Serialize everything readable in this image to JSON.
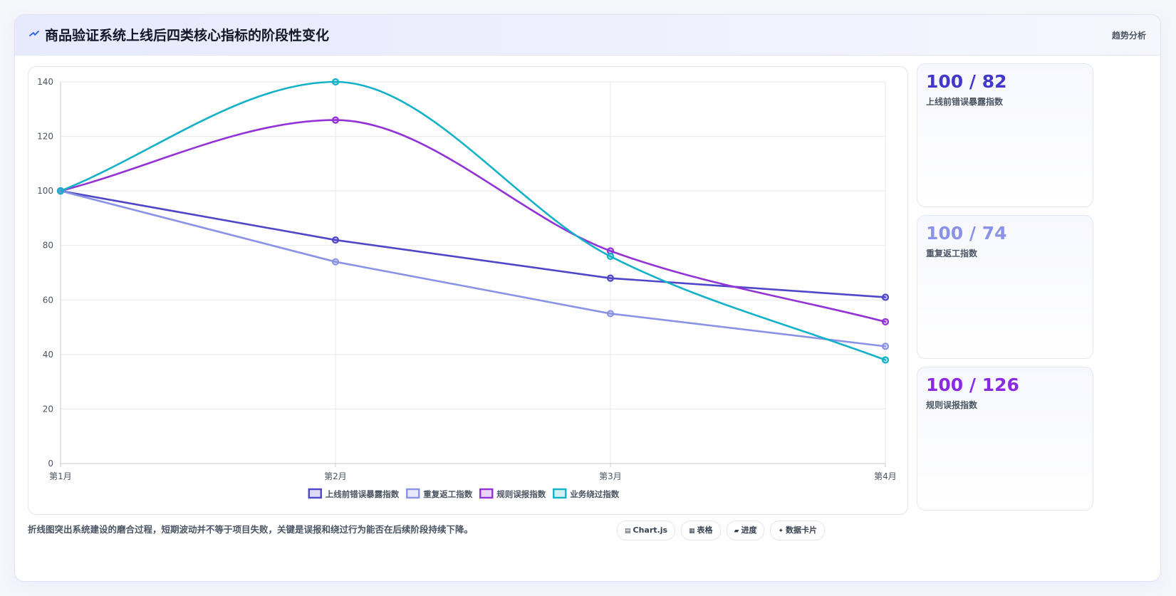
{
  "header": {
    "title": "商品验证系统上线后四类核心指标的阶段性变化",
    "tag": "趋势分析"
  },
  "chart_data": {
    "type": "line",
    "categories": [
      "第1月",
      "第2月",
      "第3月",
      "第4月"
    ],
    "ylim": [
      0,
      140
    ],
    "yticks": [
      0,
      20,
      40,
      60,
      80,
      100,
      120,
      140
    ],
    "grid": true,
    "legend_position": "bottom",
    "series": [
      {
        "name": "上线前错误暴露指数",
        "values": [
          100,
          82,
          68,
          61
        ],
        "color": "#4f46c8",
        "smooth": false
      },
      {
        "name": "重复返工指数",
        "values": [
          100,
          74,
          55,
          43
        ],
        "color": "#8b93e6",
        "smooth": false
      },
      {
        "name": "规则误报指数",
        "values": [
          100,
          126,
          78,
          52
        ],
        "color": "#9333d6",
        "smooth": true
      },
      {
        "name": "业务绕过指数",
        "values": [
          100,
          140,
          76,
          38
        ],
        "color": "#14b2c8",
        "smooth": true
      }
    ]
  },
  "stats": [
    {
      "value": "100 / 82",
      "label": "上线前错误暴露指数",
      "color": "#4338ca"
    },
    {
      "value": "100 / 74",
      "label": "重复返工指数",
      "color": "#8b93e6"
    },
    {
      "value": "100 / 126",
      "label": "规则误报指数",
      "color": "#8a2be2"
    }
  ],
  "footer": {
    "note": "折线图突出系统建设的磨合过程，短期波动并不等于项目失败，关键是误报和绕过行为能否在后续阶段持续下降。"
  },
  "pills": [
    {
      "icon": "chart-icon",
      "glyph": "▤",
      "label": "Chart.js"
    },
    {
      "icon": "table-icon",
      "glyph": "▦",
      "label": "表格"
    },
    {
      "icon": "progress-icon",
      "glyph": "▰",
      "label": "进度"
    },
    {
      "icon": "card-icon",
      "glyph": "✦",
      "label": "数据卡片"
    }
  ]
}
